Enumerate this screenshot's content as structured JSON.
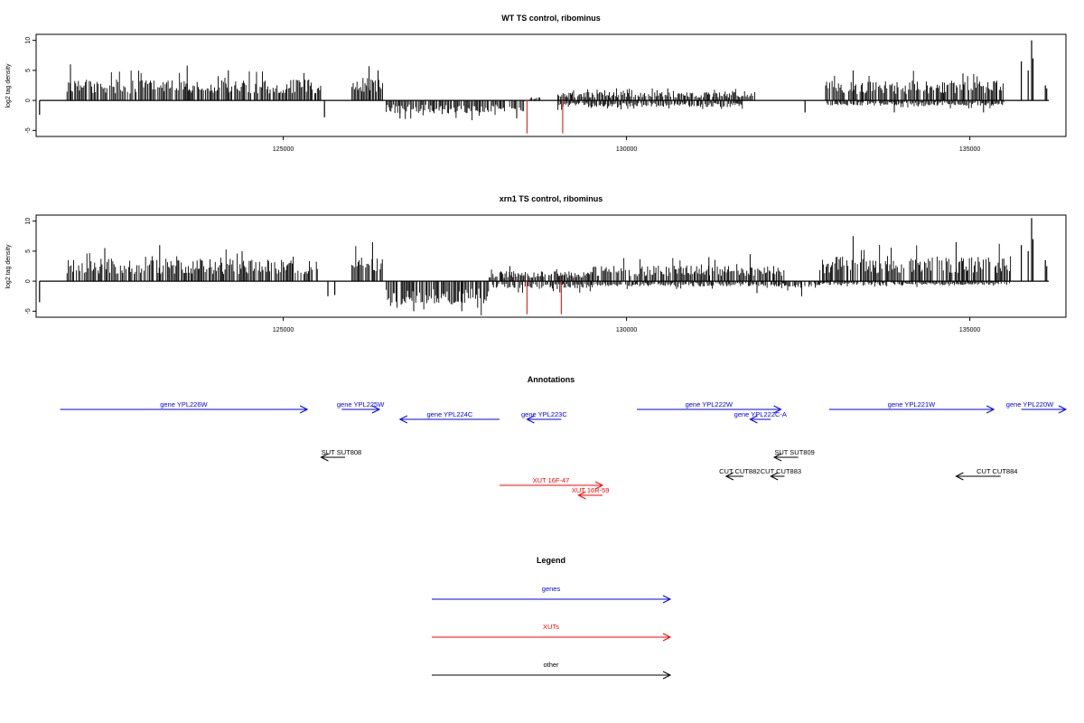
{
  "chart_data": [
    {
      "type": "bar",
      "title": "WT TS control, ribominus",
      "ylabel": "log2 tag density",
      "xlabel": "",
      "xlim": [
        121400,
        136400
      ],
      "ylim": [
        -6,
        11
      ],
      "y_ticks": [
        -5,
        0,
        5,
        10
      ],
      "x_ticks": [
        125000,
        130000,
        135000
      ],
      "x_tick_labels": [
        "125000",
        "130000",
        "135000"
      ],
      "grid": false,
      "summary_segments": [
        {
          "start": 121850,
          "end": 125550,
          "sign": 1,
          "amp": 3.2,
          "peaks": [
            [
              121900,
              6.0
            ],
            [
              123600,
              5.8
            ],
            [
              124200,
              5.0
            ]
          ]
        },
        {
          "start": 126000,
          "end": 126450,
          "sign": 1,
          "amp": 3.5,
          "peaks": [
            [
              126250,
              5.7
            ],
            [
              126380,
              5.0
            ]
          ]
        },
        {
          "start": 126500,
          "end": 128550,
          "sign": -1,
          "amp": 2.0,
          "peaks": [
            [
              126700,
              -3.0
            ],
            [
              128400,
              -3.0
            ]
          ]
        },
        {
          "start": 128600,
          "end": 128750,
          "sign": 1,
          "amp": 0.6,
          "peaks": []
        },
        {
          "start": 129000,
          "end": 131900,
          "sign": 1,
          "amp": 1.3,
          "peaks": [
            [
              130600,
              2.0
            ]
          ]
        },
        {
          "start": 129000,
          "end": 131700,
          "sign": -1,
          "amp": 1.0,
          "peaks": []
        },
        {
          "start": 132900,
          "end": 135500,
          "sign": 1,
          "amp": 3.0,
          "peaks": [
            [
              133300,
              5.0
            ],
            [
              134900,
              4.5
            ]
          ]
        },
        {
          "start": 132900,
          "end": 135500,
          "sign": -1,
          "amp": 0.8,
          "peaks": [
            [
              133900,
              -2.0
            ],
            [
              135200,
              -2.0
            ]
          ]
        }
      ],
      "spikes": [
        {
          "x": 121450,
          "y": -2.4,
          "color": "#000000"
        },
        {
          "x": 125600,
          "y": -2.8,
          "color": "#000000"
        },
        {
          "x": 132600,
          "y": -2.0,
          "color": "#000000"
        },
        {
          "x": 128550,
          "y": -5.5,
          "color": "#e0302a"
        },
        {
          "x": 129070,
          "y": -5.5,
          "color": "#e0302a"
        },
        {
          "x": 135750,
          "y": 6.5,
          "color": "#000000"
        },
        {
          "x": 135850,
          "y": 5.0,
          "color": "#000000"
        },
        {
          "x": 135900,
          "y": 10.0,
          "color": "#000000"
        },
        {
          "x": 135920,
          "y": 7.0,
          "color": "#000000"
        },
        {
          "x": 136100,
          "y": 2.5,
          "color": "#000000"
        },
        {
          "x": 136120,
          "y": 2.0,
          "color": "#000000"
        }
      ]
    },
    {
      "type": "bar",
      "title": "xrn1 TS control, ribominus",
      "ylabel": "log2 tag density",
      "xlabel": "",
      "xlim": [
        121400,
        136400
      ],
      "ylim": [
        -6,
        11
      ],
      "y_ticks": [
        -5,
        0,
        5,
        10
      ],
      "x_ticks": [
        125000,
        130000,
        135000
      ],
      "x_tick_labels": [
        "125000",
        "130000",
        "135000"
      ],
      "grid": false,
      "summary_segments": [
        {
          "start": 121850,
          "end": 125500,
          "sign": 1,
          "amp": 3.4,
          "peaks": [
            [
              122400,
              5.5
            ],
            [
              123200,
              6.0
            ],
            [
              124400,
              5.0
            ]
          ]
        },
        {
          "start": 126000,
          "end": 126450,
          "sign": 1,
          "amp": 3.6,
          "peaks": [
            [
              126300,
              6.5
            ]
          ]
        },
        {
          "start": 126500,
          "end": 128000,
          "sign": -1,
          "amp": 3.5,
          "peaks": [
            [
              126900,
              -5.0
            ],
            [
              127600,
              -5.0
            ]
          ]
        },
        {
          "start": 128000,
          "end": 129500,
          "sign": 1,
          "amp": 1.5,
          "peaks": [
            [
              128300,
              2.5
            ]
          ]
        },
        {
          "start": 128000,
          "end": 129500,
          "sign": -1,
          "amp": 1.2,
          "peaks": []
        },
        {
          "start": 129500,
          "end": 132300,
          "sign": 1,
          "amp": 2.4,
          "peaks": [
            [
              131200,
              4.0
            ],
            [
              131800,
              4.5
            ]
          ]
        },
        {
          "start": 129500,
          "end": 132300,
          "sign": -1,
          "amp": 0.8,
          "peaks": [
            [
              131900,
              -2.0
            ]
          ]
        },
        {
          "start": 132300,
          "end": 132800,
          "sign": -1,
          "amp": 1.0,
          "peaks": [
            [
              132550,
              -2.5
            ]
          ]
        },
        {
          "start": 132800,
          "end": 135600,
          "sign": 1,
          "amp": 3.8,
          "peaks": [
            [
              133300,
              7.5
            ],
            [
              134800,
              6.5
            ]
          ]
        },
        {
          "start": 132800,
          "end": 135600,
          "sign": -1,
          "amp": 0.6,
          "peaks": []
        }
      ],
      "spikes": [
        {
          "x": 121450,
          "y": -3.5,
          "color": "#000000"
        },
        {
          "x": 125650,
          "y": -2.5,
          "color": "#000000"
        },
        {
          "x": 125750,
          "y": -2.3,
          "color": "#000000"
        },
        {
          "x": 128550,
          "y": -5.5,
          "color": "#e0302a"
        },
        {
          "x": 129050,
          "y": -5.5,
          "color": "#e0302a"
        },
        {
          "x": 135750,
          "y": 6.0,
          "color": "#000000"
        },
        {
          "x": 135850,
          "y": 5.0,
          "color": "#000000"
        },
        {
          "x": 135900,
          "y": 10.5,
          "color": "#000000"
        },
        {
          "x": 135920,
          "y": 7.0,
          "color": "#000000"
        },
        {
          "x": 136100,
          "y": 3.5,
          "color": "#000000"
        },
        {
          "x": 136120,
          "y": 2.5,
          "color": "#000000"
        }
      ]
    }
  ],
  "annotations": {
    "title": "Annotations",
    "xlim": [
      121400,
      136400
    ],
    "features": [
      {
        "label": "gene YPL226W",
        "start": 121750,
        "end": 125350,
        "strand": "+",
        "row": 0,
        "type": "gene"
      },
      {
        "label": "gene YPL225W",
        "start": 125850,
        "end": 126400,
        "strand": "+",
        "row": 0,
        "type": "gene"
      },
      {
        "label": "gene YPL224C",
        "start": 126700,
        "end": 128150,
        "strand": "-",
        "row": 1,
        "type": "gene"
      },
      {
        "label": "gene YPL223C",
        "start": 128550,
        "end": 129050,
        "strand": "-",
        "row": 1,
        "type": "gene"
      },
      {
        "label": "gene YPL222W",
        "start": 130150,
        "end": 132250,
        "strand": "+",
        "row": 0,
        "type": "gene"
      },
      {
        "label": "gene YPL222C-A",
        "start": 131800,
        "end": 132100,
        "strand": "-",
        "row": 1,
        "type": "gene"
      },
      {
        "label": "gene YPL221W",
        "start": 132950,
        "end": 135350,
        "strand": "+",
        "row": 0,
        "type": "gene"
      },
      {
        "label": "gene YPL220W",
        "start": 135750,
        "end": 136400,
        "strand": "+",
        "row": 0,
        "type": "gene"
      },
      {
        "label": "SUT SUT808",
        "start": 125550,
        "end": 125900,
        "strand": "-",
        "row": 2,
        "type": "other"
      },
      {
        "label": "SUT SUT809",
        "start": 132150,
        "end": 132500,
        "strand": "-",
        "row": 2,
        "type": "other"
      },
      {
        "label": "CUT CUT882",
        "start": 131450,
        "end": 131700,
        "strand": "-",
        "row": 3,
        "type": "other"
      },
      {
        "label": "CUT CUT883",
        "start": 132100,
        "end": 132300,
        "strand": "-",
        "row": 3,
        "type": "other"
      },
      {
        "label": "CUT CUT884",
        "start": 134800,
        "end": 135450,
        "strand": "-",
        "row": 3,
        "type": "other"
      },
      {
        "label": "XUT 16F-47",
        "start": 128150,
        "end": 129650,
        "strand": "+",
        "row": 4,
        "type": "xut"
      },
      {
        "label": "XUT 16R-59",
        "start": 129300,
        "end": 129650,
        "strand": "-",
        "row": 5,
        "type": "xut"
      }
    ]
  },
  "legend": {
    "title": "Legend",
    "items": [
      {
        "label": "genes",
        "color": "#0000ff"
      },
      {
        "label": "XUTs",
        "color": "#ff0000"
      },
      {
        "label": "other",
        "color": "#000000"
      }
    ]
  },
  "colors": {
    "gene": "#0000ff",
    "xut": "#ff0000",
    "other": "#000000",
    "bar": "#000000"
  }
}
